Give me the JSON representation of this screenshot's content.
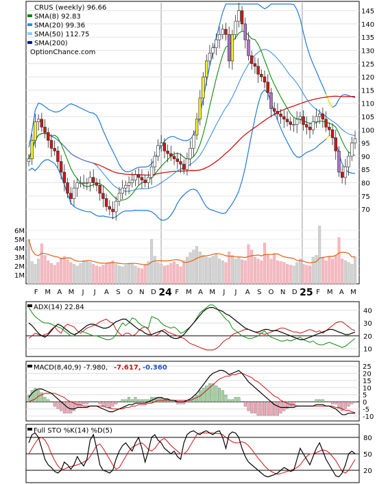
{
  "chart_data": [
    {
      "panel": "price",
      "type": "candlestick",
      "title": "CRUS (weekly) 96.66",
      "watermark": "OptionChance.com",
      "legend": [
        {
          "label": "SMA(8) 92.83",
          "color": "#008000"
        },
        {
          "label": "SMA(20) 99.36",
          "color": "#1e90ff"
        },
        {
          "label": "SMA(50) 112.75",
          "color": "#87cefa"
        },
        {
          "label": "SMA(200)",
          "color": "#0000cd"
        }
      ],
      "legend_placement": "top-left",
      "ylim": [
        62,
        148
      ],
      "y_ticks": [
        70,
        75,
        80,
        85,
        90,
        95,
        100,
        105,
        110,
        115,
        120,
        125,
        130,
        135,
        140,
        145
      ],
      "x_tick_labels": [
        "F",
        "M",
        "A",
        "M",
        "J",
        "J",
        "A",
        "S",
        "O",
        "N",
        "D",
        "24",
        "F",
        "M",
        "A",
        "M",
        "J",
        "J",
        "A",
        "S",
        "O",
        "N",
        "D",
        "25",
        "F",
        "M",
        "A",
        "M"
      ],
      "close": [
        89,
        96,
        103,
        104,
        101,
        99,
        96,
        93,
        92,
        88,
        84,
        80,
        76,
        74,
        78,
        80,
        80,
        80,
        80,
        82,
        80,
        79,
        76,
        74,
        71,
        70,
        69,
        73,
        76,
        78,
        79,
        80,
        81,
        83,
        82,
        81,
        80,
        82,
        86,
        90,
        94,
        95,
        92,
        91,
        90,
        89,
        88,
        87,
        85,
        89,
        93,
        98,
        104,
        112,
        120,
        126,
        129,
        131,
        134,
        136,
        138,
        136,
        126,
        136,
        141,
        145,
        140,
        134,
        128,
        125,
        124,
        121,
        120,
        118,
        114,
        108,
        107,
        106,
        105,
        104,
        103,
        102,
        102,
        104,
        105,
        102,
        101,
        100,
        103,
        105,
        106,
        104,
        101,
        100,
        97,
        92,
        84,
        82,
        86,
        90,
        95,
        96.66
      ],
      "volume_millions": [
        5.0,
        2.5,
        2.2,
        2.8,
        4.5,
        3.2,
        2.6,
        2.3,
        2.1,
        2.4,
        2.9,
        3.1,
        2.7,
        2.4,
        2.2,
        2.0,
        2.3,
        2.6,
        2.5,
        2.4,
        2.2,
        2.0,
        1.9,
        2.1,
        2.3,
        2.4,
        2.6,
        2.2,
        2.0,
        1.9,
        2.1,
        2.3,
        2.2,
        2.0,
        1.8,
        1.7,
        2.2,
        2.5,
        5.0,
        3.1,
        2.4,
        2.2,
        2.0,
        2.1,
        2.3,
        2.5,
        2.2,
        1.9,
        2.6,
        3.0,
        3.5,
        3.8,
        4.2,
        3.6,
        3.2,
        3.0,
        2.9,
        3.1,
        3.3,
        2.8,
        2.6,
        2.4,
        3.6,
        3.2,
        2.8,
        3.0,
        2.7,
        2.6,
        4.4,
        3.8,
        3.0,
        2.8,
        2.6,
        4.6,
        3.2,
        2.8,
        3.4,
        2.6,
        2.5,
        2.4,
        2.2,
        2.1,
        2.0,
        2.4,
        2.8,
        2.2,
        2.1,
        2.0,
        3.0,
        3.2,
        6.5,
        2.9,
        2.6,
        3.0,
        2.8,
        3.2,
        5.2,
        2.8,
        2.6,
        2.4,
        2.2,
        3.0
      ],
      "volume_ticks": [
        "6M",
        "5M",
        "4M",
        "3M",
        "2M",
        "1M"
      ],
      "date_markers": [
        "24",
        "25"
      ]
    },
    {
      "panel": "adx",
      "type": "line",
      "label": "ADX(14) 22.84",
      "ylim": [
        5,
        45
      ],
      "y_ticks": [
        10,
        20,
        30,
        40
      ],
      "adx": [
        30,
        28,
        25,
        22,
        20,
        19,
        21,
        24,
        27,
        29,
        28,
        26,
        24,
        22,
        21,
        22,
        24,
        26,
        28,
        29,
        29,
        28,
        27,
        26,
        26,
        27,
        29,
        31,
        32,
        33,
        33,
        31,
        29,
        27,
        25,
        24,
        22,
        21,
        21,
        22,
        23,
        24,
        23,
        21,
        19,
        18,
        18,
        19,
        21,
        24,
        27,
        30,
        33,
        36,
        39,
        41,
        42,
        42,
        41,
        40,
        39,
        37,
        36,
        34,
        32,
        30,
        28,
        26,
        25,
        24,
        23,
        23,
        24,
        25,
        25,
        24,
        24,
        24,
        23,
        22,
        21,
        20,
        19,
        18,
        17,
        17,
        18,
        19,
        20,
        21,
        22,
        23,
        24,
        25,
        25,
        24,
        23,
        22,
        21,
        21,
        22,
        22.84
      ],
      "plus_di": [
        42,
        38,
        35,
        33,
        31,
        30,
        30,
        29,
        28,
        27,
        26,
        24,
        22,
        20,
        20,
        22,
        24,
        23,
        22,
        21,
        20,
        20,
        19,
        18,
        17,
        17,
        18,
        21,
        26,
        30,
        28,
        30,
        34,
        33,
        30,
        28,
        27,
        26,
        35,
        34,
        33,
        30,
        28,
        27,
        26,
        27,
        25,
        22,
        23,
        25,
        27,
        30,
        34,
        38,
        40,
        42,
        44,
        44,
        42,
        39,
        36,
        33,
        31,
        26,
        24,
        22,
        20,
        19,
        18,
        18,
        19,
        20,
        22,
        24,
        21,
        19,
        18,
        17,
        16,
        16,
        17,
        16,
        17,
        18,
        19,
        17,
        16,
        15,
        16,
        14,
        13,
        13,
        14,
        15,
        14,
        13,
        12,
        11,
        12,
        14,
        16,
        18
      ],
      "minus_di": [
        18,
        20,
        22,
        21,
        20,
        21,
        22,
        25,
        27,
        24,
        22,
        27,
        29,
        28,
        27,
        24,
        22,
        24,
        26,
        27,
        28,
        29,
        31,
        32,
        33,
        31,
        30,
        25,
        22,
        20,
        22,
        22,
        20,
        21,
        24,
        26,
        27,
        25,
        20,
        20,
        21,
        24,
        25,
        23,
        22,
        21,
        20,
        19,
        18,
        16,
        14,
        13,
        12,
        11,
        10,
        9,
        9,
        9,
        10,
        12,
        15,
        17,
        18,
        21,
        22,
        23,
        24,
        25,
        25,
        24,
        23,
        22,
        22,
        21,
        22,
        23,
        24,
        25,
        26,
        26,
        25,
        24,
        23,
        23,
        22,
        23,
        24,
        25,
        24,
        23,
        24,
        22,
        24,
        26,
        28,
        30,
        31,
        31,
        29,
        27,
        25,
        24
      ]
    },
    {
      "panel": "macd",
      "type": "line",
      "label": "MACD(8,40,9) -7.980,",
      "macd_value": "-7.617,",
      "signal_value": "-0.360",
      "ylim": [
        -12,
        27
      ],
      "y_ticks": [
        25,
        20,
        15,
        10,
        5,
        0,
        -5,
        -10
      ],
      "macd": [
        3,
        6,
        8,
        9,
        9,
        8,
        7,
        6,
        4,
        2,
        0,
        -2,
        -4,
        -5,
        -5,
        -4,
        -4,
        -4,
        -4,
        -3,
        -3,
        -3,
        -4,
        -5,
        -6,
        -7,
        -7,
        -6,
        -5,
        -4,
        -3,
        -2,
        -2,
        -1,
        -1,
        -1,
        -1,
        0,
        1,
        2,
        3,
        3,
        2,
        2,
        1,
        1,
        0,
        0,
        0,
        1,
        2,
        4,
        6,
        9,
        12,
        15,
        18,
        20,
        21,
        22,
        22,
        21,
        19,
        20,
        21,
        22,
        20,
        17,
        14,
        12,
        10,
        8,
        6,
        4,
        2,
        0,
        -2,
        -3,
        -4,
        -4,
        -4,
        -4,
        -4,
        -3,
        -3,
        -3,
        -3,
        -3,
        -3,
        -2,
        -2,
        -2,
        -3,
        -3,
        -4,
        -5,
        -7,
        -9,
        -9,
        -8,
        -8,
        -7.98
      ],
      "signal": [
        0,
        1,
        2,
        4,
        5,
        6,
        6,
        6,
        6,
        5,
        4,
        3,
        1,
        0,
        -1,
        -2,
        -2,
        -3,
        -3,
        -3,
        -3,
        -3,
        -3,
        -3,
        -4,
        -4,
        -5,
        -5,
        -5,
        -5,
        -4,
        -4,
        -3,
        -3,
        -2,
        -2,
        -2,
        -1,
        -1,
        0,
        1,
        1,
        1,
        1,
        1,
        1,
        1,
        1,
        1,
        1,
        1,
        2,
        3,
        4,
        6,
        8,
        10,
        12,
        14,
        16,
        17,
        18,
        18,
        19,
        19,
        20,
        20,
        19,
        18,
        17,
        15,
        14,
        12,
        10,
        8,
        6,
        4,
        3,
        1,
        0,
        -1,
        -2,
        -2,
        -3,
        -3,
        -3,
        -3,
        -3,
        -3,
        -3,
        -3,
        -3,
        -3,
        -3,
        -3,
        -4,
        -4,
        -5,
        -6,
        -6,
        -7,
        -7.62
      ]
    },
    {
      "panel": "stochastic",
      "type": "line",
      "label": "Full STO %K(14) %D(5)",
      "ylim": [
        0,
        100
      ],
      "y_ticks": [
        80,
        50,
        20
      ],
      "k": [
        70,
        85,
        88,
        80,
        60,
        40,
        30,
        25,
        18,
        15,
        20,
        35,
        30,
        22,
        30,
        45,
        35,
        28,
        40,
        75,
        85,
        60,
        30,
        20,
        18,
        15,
        20,
        40,
        55,
        65,
        70,
        62,
        55,
        70,
        80,
        60,
        35,
        55,
        80,
        85,
        75,
        70,
        60,
        55,
        50,
        55,
        45,
        40,
        70,
        85,
        90,
        92,
        88,
        85,
        90,
        92,
        88,
        85,
        90,
        92,
        80,
        60,
        85,
        90,
        88,
        80,
        60,
        45,
        35,
        30,
        25,
        20,
        15,
        10,
        8,
        10,
        12,
        15,
        20,
        25,
        22,
        18,
        20,
        40,
        60,
        50,
        40,
        30,
        45,
        60,
        70,
        55,
        40,
        30,
        20,
        10,
        8,
        15,
        30,
        50,
        55,
        50
      ],
      "d": [
        50,
        60,
        70,
        78,
        80,
        75,
        65,
        50,
        38,
        28,
        22,
        22,
        25,
        27,
        28,
        30,
        32,
        35,
        38,
        45,
        55,
        65,
        68,
        60,
        50,
        40,
        30,
        22,
        25,
        35,
        45,
        55,
        62,
        65,
        68,
        70,
        65,
        58,
        55,
        60,
        68,
        75,
        78,
        72,
        65,
        60,
        55,
        50,
        50,
        55,
        65,
        75,
        85,
        88,
        88,
        88,
        88,
        88,
        87,
        87,
        85,
        80,
        76,
        72,
        70,
        70,
        72,
        70,
        65,
        58,
        50,
        42,
        35,
        28,
        22,
        18,
        15,
        13,
        14,
        16,
        18,
        20,
        22,
        25,
        30,
        38,
        45,
        50,
        50,
        52,
        55,
        57,
        56,
        52,
        45,
        38,
        28,
        18,
        15,
        20,
        30,
        40
      ]
    }
  ]
}
